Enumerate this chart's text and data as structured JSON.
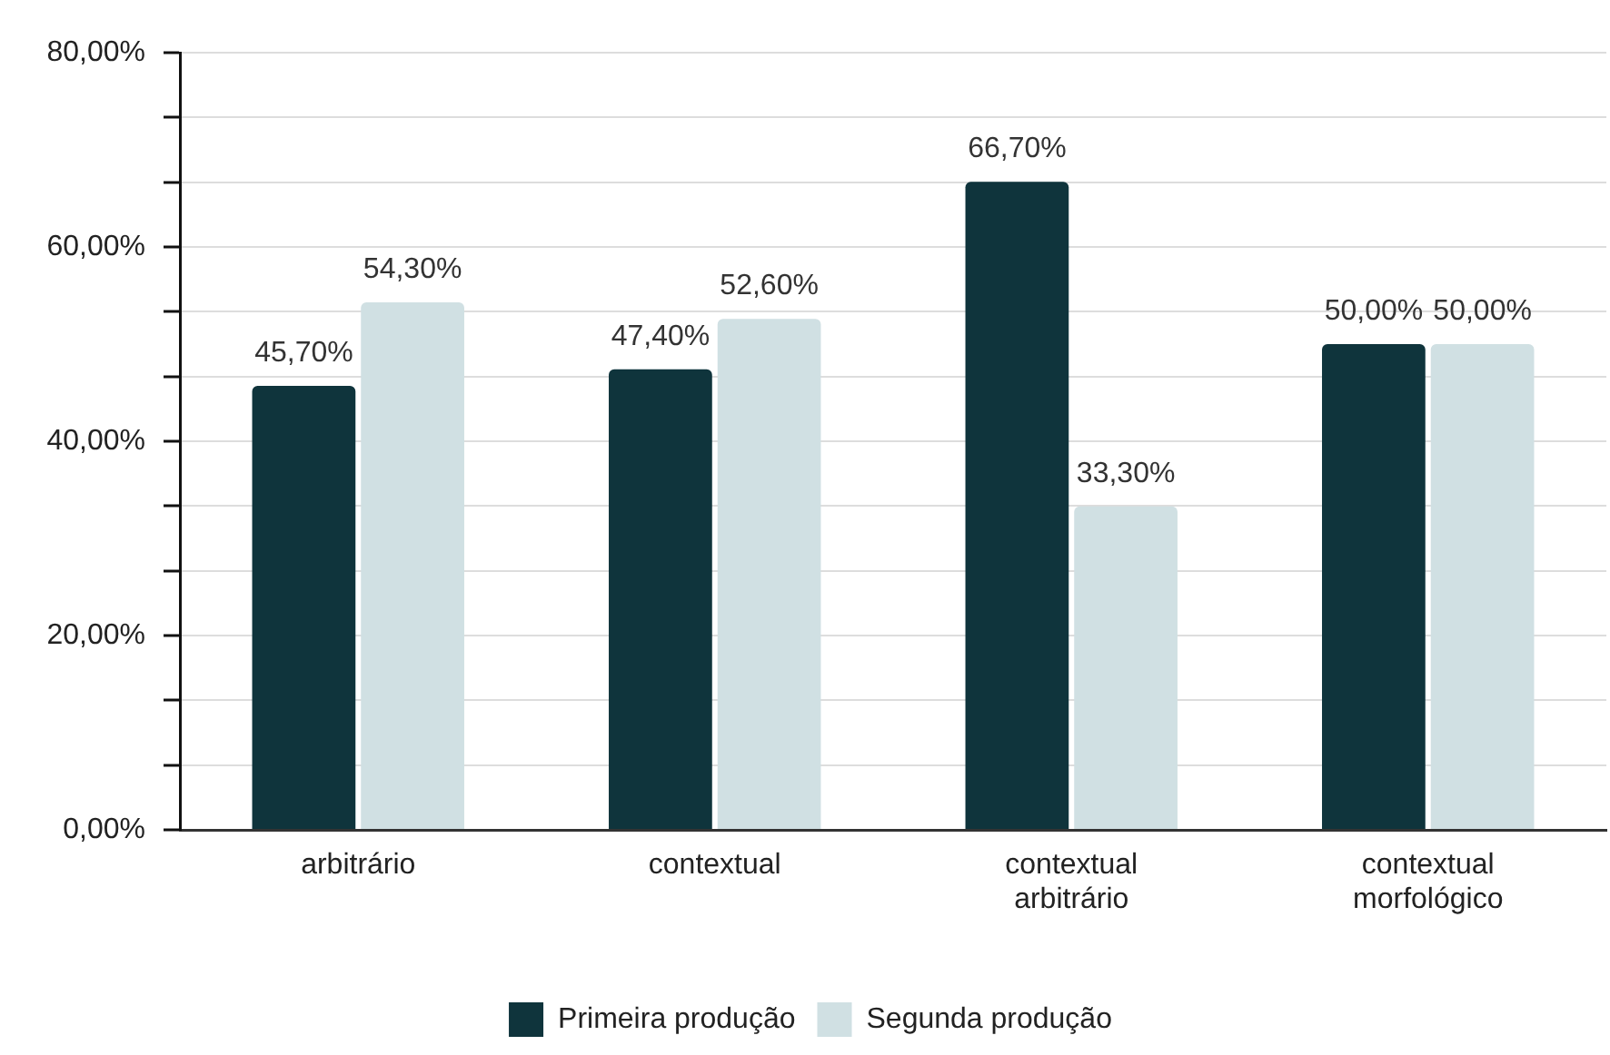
{
  "chart_data": {
    "type": "bar",
    "categories": [
      "arbitrário",
      "contextual",
      "contextual arbitrário",
      "contextual morfológico"
    ],
    "series": [
      {
        "name": "Primeira produção",
        "color": "#0f343c",
        "values": [
          45.7,
          47.4,
          66.7,
          50
        ],
        "value_labels": [
          "45,70%",
          "47,40%",
          "66,70%",
          "50,00%"
        ]
      },
      {
        "name": "Segunda produção",
        "color": "#d0e0e3",
        "values": [
          54.3,
          52.6,
          33.3,
          50
        ],
        "value_labels": [
          "54,30%",
          "52,60%",
          "33,30%",
          "50,00%"
        ]
      }
    ],
    "ylim": [
      0,
      80
    ],
    "yticks": [
      {
        "value": 0,
        "label": "0,00%"
      },
      {
        "value": 6.667,
        "label": null
      },
      {
        "value": 13.333,
        "label": null
      },
      {
        "value": 20,
        "label": "20,00%"
      },
      {
        "value": 26.667,
        "label": null
      },
      {
        "value": 33.333,
        "label": null
      },
      {
        "value": 40,
        "label": "40,00%"
      },
      {
        "value": 46.667,
        "label": null
      },
      {
        "value": 53.333,
        "label": null
      },
      {
        "value": 60,
        "label": "60,00%"
      },
      {
        "value": 66.667,
        "label": null
      },
      {
        "value": 73.333,
        "label": null
      },
      {
        "value": 80,
        "label": "80,00%"
      }
    ],
    "grid": "y",
    "legend": "bottom"
  }
}
